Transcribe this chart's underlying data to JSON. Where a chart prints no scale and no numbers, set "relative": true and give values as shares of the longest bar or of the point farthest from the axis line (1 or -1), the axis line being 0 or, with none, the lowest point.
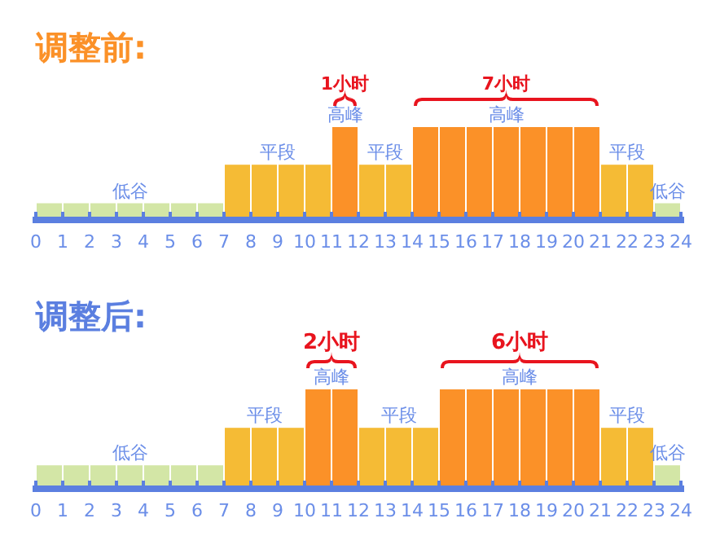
{
  "chart_data": [
    {
      "type": "bar",
      "title": "调整前:",
      "relative": true,
      "x": [
        0.5,
        1.5,
        2.5,
        3.5,
        4.5,
        5.5,
        6.5,
        7.5,
        8.5,
        9.5,
        10.5,
        11.5,
        12.5,
        13.5,
        14.5,
        15.5,
        16.5,
        17.5,
        18.5,
        19.5,
        20.5,
        21.5,
        22.5,
        23.5
      ],
      "values": [
        0.15,
        0.15,
        0.15,
        0.15,
        0.15,
        0.15,
        0.15,
        0.58,
        0.58,
        0.58,
        0.58,
        1,
        0.58,
        0.58,
        1,
        1,
        1,
        1,
        1,
        1,
        1,
        0.58,
        0.58,
        0.15
      ],
      "colors": [
        "#d3e6a6",
        "#d3e6a6",
        "#d3e6a6",
        "#d3e6a6",
        "#d3e6a6",
        "#d3e6a6",
        "#d3e6a6",
        "#f5bb35",
        "#f5bb35",
        "#f5bb35",
        "#f5bb35",
        "#fb9128",
        "#f5bb35",
        "#f5bb35",
        "#fb9128",
        "#fb9128",
        "#fb9128",
        "#fb9128",
        "#fb9128",
        "#fb9128",
        "#fb9128",
        "#f5bb35",
        "#f5bb35",
        "#d3e6a6"
      ],
      "xlim": [
        0,
        24
      ],
      "xticks": [
        0,
        1,
        2,
        3,
        4,
        5,
        6,
        7,
        8,
        9,
        10,
        11,
        12,
        13,
        14,
        15,
        16,
        17,
        18,
        19,
        20,
        21,
        22,
        23,
        24
      ],
      "annotations": [
        {
          "text": "低谷",
          "x": 3.5,
          "y": 0.15
        },
        {
          "text": "平段",
          "x": 8.5,
          "y": 0.58
        },
        {
          "text": "高峰",
          "x": 11.5,
          "y": 1
        },
        {
          "text": "平段",
          "x": 12.5,
          "y": 0.58
        },
        {
          "text": "高峰",
          "x": 17.5,
          "y": 1
        },
        {
          "text": "平段",
          "x": 21.5,
          "y": 0.58
        },
        {
          "text": "低谷",
          "x": 23.5,
          "y": 0.15
        },
        {
          "text": "1小时",
          "x": 11.5,
          "y": 1
        },
        {
          "text": "7小时",
          "x": 17.5,
          "y": 1
        }
      ]
    },
    {
      "type": "bar",
      "title": "调整后:",
      "relative": true,
      "x": [
        0.5,
        1.5,
        2.5,
        3.5,
        4.5,
        5.5,
        6.5,
        7.5,
        8.5,
        9.5,
        10.5,
        11.5,
        12.5,
        13.5,
        14.5,
        15.5,
        16.5,
        17.5,
        18.5,
        19.5,
        20.5,
        21.5,
        22.5,
        23.5
      ],
      "values": [
        0.21,
        0.21,
        0.21,
        0.21,
        0.21,
        0.21,
        0.21,
        0.6,
        0.6,
        0.6,
        1,
        1,
        0.6,
        0.6,
        0.6,
        1,
        1,
        1,
        1,
        1,
        1,
        0.6,
        0.6,
        0.21
      ],
      "colors": [
        "#d3e6a6",
        "#d3e6a6",
        "#d3e6a6",
        "#d3e6a6",
        "#d3e6a6",
        "#d3e6a6",
        "#d3e6a6",
        "#f5bb35",
        "#f5bb35",
        "#f5bb35",
        "#fb9128",
        "#fb9128",
        "#f5bb35",
        "#f5bb35",
        "#f5bb35",
        "#fb9128",
        "#fb9128",
        "#fb9128",
        "#fb9128",
        "#fb9128",
        "#fb9128",
        "#f5bb35",
        "#f5bb35",
        "#d3e6a6"
      ],
      "xlim": [
        0,
        24
      ],
      "xticks": [
        0,
        1,
        2,
        3,
        4,
        5,
        6,
        7,
        8,
        9,
        10,
        11,
        12,
        13,
        14,
        15,
        16,
        17,
        18,
        19,
        20,
        21,
        22,
        23,
        24
      ],
      "annotations": [
        {
          "text": "低谷",
          "x": 3.5,
          "y": 0.21
        },
        {
          "text": "平段",
          "x": 8.5,
          "y": 0.6
        },
        {
          "text": "高峰",
          "x": 10.5,
          "y": 1
        },
        {
          "text": "平段",
          "x": 13.5,
          "y": 0.6
        },
        {
          "text": "高峰",
          "x": 17.5,
          "y": 1
        },
        {
          "text": "平段",
          "x": 21.5,
          "y": 0.6
        },
        {
          "text": "低谷",
          "x": 23.5,
          "y": 0.21
        },
        {
          "text": "2小时",
          "x": 10.5,
          "y": 1
        },
        {
          "text": "6小时",
          "x": 17.5,
          "y": 1
        }
      ]
    }
  ]
}
